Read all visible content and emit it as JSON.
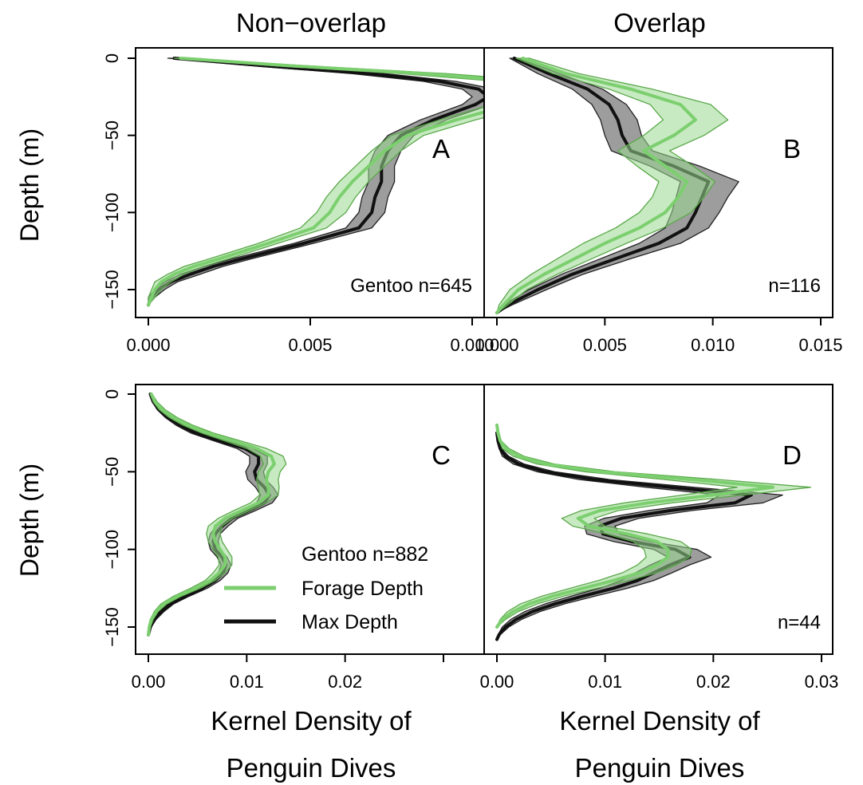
{
  "column_titles": [
    "Non−overlap",
    "Overlap"
  ],
  "ylabel": "Depth (m)",
  "xlabel_line1": "Kernel Density of",
  "xlabel_line2": "Penguin Dives",
  "colors": {
    "max_line": "#111111",
    "max_band": "#8c8c8c",
    "forage_line": "#7ccf6f",
    "forage_band": "#9bd98f",
    "forage_band_edge": "#5aa84a",
    "overlap_band": "#6e9a66"
  },
  "legend": {
    "title": "Gentoo n=882",
    "items": [
      {
        "label": "Forage Depth",
        "color": "#7ccf6f"
      },
      {
        "label": "Max Depth",
        "color": "#111111"
      }
    ]
  },
  "chart_data": [
    {
      "type": "area",
      "panel": "A",
      "annotation": "Gentoo n=645",
      "xlim": [
        0,
        0.015
      ],
      "xticks": [
        0.0,
        0.005,
        0.01
      ],
      "xticklabels": [
        "0.000",
        "0.005",
        "0.010"
      ],
      "ylim": [
        -165,
        5
      ],
      "yticks": [
        0,
        -50,
        -100,
        -150
      ],
      "yticklabels": [
        "0",
        "−50",
        "−100",
        "−150"
      ],
      "series": [
        {
          "name": "Forage Depth",
          "depth": [
            -160,
            -155,
            -150,
            -145,
            -140,
            -135,
            -130,
            -120,
            -110,
            -100,
            -90,
            -80,
            -70,
            -60,
            -50,
            -40,
            -30,
            -25,
            -20,
            -15,
            -10,
            -5,
            0
          ],
          "mean": [
            0.0,
            0.0001,
            0.0002,
            0.0004,
            0.0008,
            0.0014,
            0.0022,
            0.0037,
            0.0051,
            0.0056,
            0.0059,
            0.0063,
            0.0068,
            0.0073,
            0.008,
            0.0095,
            0.0112,
            0.0122,
            0.0128,
            0.0115,
            0.0085,
            0.0045,
            0.001
          ],
          "lower": [
            0.0,
            0.0,
            0.0001,
            0.0002,
            0.0006,
            0.0011,
            0.0019,
            0.0034,
            0.0047,
            0.0052,
            0.0055,
            0.0059,
            0.0064,
            0.0069,
            0.0075,
            0.009,
            0.0106,
            0.0115,
            0.012,
            0.0108,
            0.0078,
            0.004,
            0.0008
          ],
          "upper": [
            0.0,
            0.0002,
            0.0004,
            0.0007,
            0.0011,
            0.0017,
            0.0025,
            0.004,
            0.0055,
            0.0061,
            0.0064,
            0.0068,
            0.0073,
            0.0078,
            0.0085,
            0.0101,
            0.0119,
            0.013,
            0.0137,
            0.0123,
            0.0092,
            0.005,
            0.0012
          ]
        },
        {
          "name": "Max Depth",
          "depth": [
            -160,
            -155,
            -150,
            -145,
            -140,
            -135,
            -130,
            -120,
            -110,
            -100,
            -90,
            -80,
            -70,
            -60,
            -50,
            -40,
            -30,
            -25,
            -20,
            -15,
            -10,
            -5,
            0
          ],
          "mean": [
            0.0,
            0.0001,
            0.0003,
            0.0007,
            0.0013,
            0.002,
            0.0029,
            0.0048,
            0.0065,
            0.0069,
            0.007,
            0.0072,
            0.0072,
            0.0074,
            0.0078,
            0.0088,
            0.0101,
            0.0105,
            0.0102,
            0.009,
            0.0068,
            0.0037,
            0.0008
          ],
          "lower": [
            0.0,
            0.0,
            0.0002,
            0.0005,
            0.001,
            0.0017,
            0.0026,
            0.0045,
            0.0061,
            0.0065,
            0.0066,
            0.0068,
            0.0068,
            0.007,
            0.0074,
            0.0084,
            0.0097,
            0.01,
            0.0097,
            0.0085,
            0.0063,
            0.0033,
            0.0006
          ],
          "upper": [
            0.0,
            0.0002,
            0.0005,
            0.0009,
            0.0016,
            0.0023,
            0.0032,
            0.0051,
            0.0069,
            0.0073,
            0.0074,
            0.0076,
            0.0076,
            0.0078,
            0.0082,
            0.0092,
            0.0106,
            0.011,
            0.0107,
            0.0095,
            0.0073,
            0.0041,
            0.001
          ]
        }
      ]
    },
    {
      "type": "area",
      "panel": "B",
      "annotation": "n=116",
      "xlim": [
        0,
        0.015
      ],
      "xticks": [
        0.0,
        0.005,
        0.01,
        0.015
      ],
      "xticklabels": [
        "0.000",
        "0.005",
        "0.010",
        "0.015"
      ],
      "ylim": [
        -165,
        5
      ],
      "yticks": [
        0,
        -50,
        -100,
        -150
      ],
      "yticklabels": [
        "0",
        "−50",
        "−100",
        "−150"
      ],
      "series": [
        {
          "name": "Forage Depth",
          "depth": [
            -165,
            -160,
            -150,
            -140,
            -130,
            -120,
            -110,
            -100,
            -90,
            -80,
            -70,
            -60,
            -50,
            -40,
            -30,
            -20,
            -10,
            0
          ],
          "mean": [
            0.0,
            0.0003,
            0.001,
            0.0022,
            0.0036,
            0.005,
            0.0066,
            0.0078,
            0.0084,
            0.0088,
            0.0078,
            0.0068,
            0.0082,
            0.0092,
            0.0085,
            0.0062,
            0.0032,
            0.0012
          ],
          "lower": [
            0.0,
            0.0001,
            0.0006,
            0.0016,
            0.0028,
            0.004,
            0.0055,
            0.0066,
            0.0072,
            0.0075,
            0.0065,
            0.0056,
            0.0068,
            0.0077,
            0.0071,
            0.0052,
            0.0026,
            0.0009
          ],
          "upper": [
            0.0,
            0.0005,
            0.0014,
            0.0028,
            0.0044,
            0.006,
            0.0077,
            0.009,
            0.0096,
            0.0101,
            0.0091,
            0.008,
            0.0096,
            0.0107,
            0.0099,
            0.0072,
            0.0038,
            0.0015
          ]
        },
        {
          "name": "Max Depth",
          "depth": [
            -165,
            -160,
            -150,
            -140,
            -130,
            -120,
            -110,
            -100,
            -90,
            -80,
            -70,
            -60,
            -50,
            -40,
            -30,
            -20,
            -10,
            0
          ],
          "mean": [
            0.0,
            0.0005,
            0.0019,
            0.0035,
            0.0055,
            0.0075,
            0.0088,
            0.0092,
            0.0095,
            0.0098,
            0.0082,
            0.0062,
            0.0058,
            0.0056,
            0.0052,
            0.0042,
            0.0024,
            0.0008
          ],
          "lower": [
            0.0,
            0.0003,
            0.0015,
            0.003,
            0.0048,
            0.0066,
            0.0078,
            0.0081,
            0.0083,
            0.0085,
            0.0071,
            0.0053,
            0.005,
            0.0048,
            0.0044,
            0.0035,
            0.0019,
            0.0006
          ],
          "upper": [
            0.0,
            0.0007,
            0.0023,
            0.004,
            0.0062,
            0.0085,
            0.0098,
            0.0103,
            0.0107,
            0.0112,
            0.0094,
            0.0072,
            0.0067,
            0.0065,
            0.006,
            0.0049,
            0.0029,
            0.001
          ]
        }
      ]
    },
    {
      "type": "area",
      "panel": "C",
      "annotation": "",
      "xlim": [
        0,
        0.03
      ],
      "xticks": [
        0.0,
        0.01,
        0.02,
        0.03
      ],
      "xticklabels": [
        "0.00",
        "0.01",
        "0.02",
        ""
      ],
      "ylim": [
        -165,
        5
      ],
      "yticks": [
        0,
        -50,
        -100,
        -150
      ],
      "yticklabels": [
        "0",
        "−50",
        "−100",
        "−150"
      ],
      "series": [
        {
          "name": "Forage Depth",
          "depth": [
            -155,
            -150,
            -145,
            -140,
            -135,
            -130,
            -125,
            -120,
            -115,
            -110,
            -105,
            -100,
            -95,
            -90,
            -85,
            -80,
            -75,
            -70,
            -65,
            -60,
            -55,
            -50,
            -45,
            -40,
            -35,
            -30,
            -25,
            -20,
            -15,
            -10,
            -5,
            0
          ],
          "mean": [
            0.0,
            0.0001,
            0.0003,
            0.0008,
            0.0016,
            0.003,
            0.0048,
            0.0063,
            0.0072,
            0.0078,
            0.0078,
            0.0073,
            0.0068,
            0.0066,
            0.0068,
            0.0078,
            0.0095,
            0.0112,
            0.0122,
            0.0122,
            0.012,
            0.0122,
            0.0128,
            0.0125,
            0.011,
            0.0085,
            0.006,
            0.004,
            0.0025,
            0.0014,
            0.0007,
            0.0003
          ],
          "lower": [
            0.0,
            0.0,
            0.0002,
            0.0006,
            0.0013,
            0.0026,
            0.0043,
            0.0058,
            0.0066,
            0.0072,
            0.0071,
            0.0066,
            0.0061,
            0.0059,
            0.0061,
            0.0071,
            0.0087,
            0.0104,
            0.0113,
            0.0112,
            0.011,
            0.0112,
            0.0117,
            0.0114,
            0.01,
            0.0077,
            0.0054,
            0.0035,
            0.0021,
            0.0011,
            0.0005,
            0.0002
          ],
          "upper": [
            0.0,
            0.0002,
            0.0005,
            0.001,
            0.0019,
            0.0034,
            0.0053,
            0.0068,
            0.0078,
            0.0085,
            0.0085,
            0.008,
            0.0075,
            0.0073,
            0.0075,
            0.0086,
            0.0103,
            0.012,
            0.0132,
            0.0133,
            0.0132,
            0.0134,
            0.014,
            0.0137,
            0.012,
            0.0093,
            0.0066,
            0.0045,
            0.0029,
            0.0017,
            0.0009,
            0.0004
          ]
        },
        {
          "name": "Max Depth",
          "depth": [
            -155,
            -150,
            -145,
            -140,
            -135,
            -130,
            -125,
            -120,
            -115,
            -110,
            -105,
            -100,
            -95,
            -90,
            -85,
            -80,
            -75,
            -70,
            -65,
            -60,
            -55,
            -50,
            -45,
            -40,
            -35,
            -30,
            -25,
            -20,
            -15,
            -10,
            -5,
            0
          ],
          "mean": [
            0.0,
            0.0002,
            0.0006,
            0.0013,
            0.0023,
            0.0038,
            0.0055,
            0.0068,
            0.0076,
            0.0079,
            0.0075,
            0.0068,
            0.0066,
            0.0068,
            0.0075,
            0.0085,
            0.0102,
            0.0118,
            0.0123,
            0.0118,
            0.011,
            0.0108,
            0.0112,
            0.0112,
            0.0098,
            0.0072,
            0.0048,
            0.0032,
            0.002,
            0.0011,
            0.0005,
            0.0002
          ],
          "lower": [
            0.0,
            0.0001,
            0.0004,
            0.001,
            0.002,
            0.0034,
            0.005,
            0.0063,
            0.0071,
            0.0074,
            0.007,
            0.0063,
            0.0061,
            0.0063,
            0.0069,
            0.0079,
            0.0095,
            0.011,
            0.0114,
            0.0109,
            0.0101,
            0.0099,
            0.0103,
            0.0103,
            0.009,
            0.0066,
            0.0043,
            0.0028,
            0.0017,
            0.0009,
            0.0004,
            0.0001
          ],
          "upper": [
            0.0,
            0.0003,
            0.0008,
            0.0016,
            0.0026,
            0.0042,
            0.006,
            0.0073,
            0.0081,
            0.0084,
            0.008,
            0.0073,
            0.0071,
            0.0073,
            0.0081,
            0.0091,
            0.0109,
            0.0126,
            0.0132,
            0.0127,
            0.0119,
            0.0117,
            0.0121,
            0.0121,
            0.0106,
            0.0078,
            0.0053,
            0.0036,
            0.0023,
            0.0013,
            0.0006,
            0.0003
          ]
        }
      ]
    },
    {
      "type": "area",
      "panel": "D",
      "annotation": "n=44",
      "xlim": [
        0,
        0.033
      ],
      "xticks": [
        0.0,
        0.01,
        0.02,
        0.03
      ],
      "xticklabels": [
        "0.00",
        "0.01",
        "0.02",
        "0.03"
      ],
      "ylim": [
        -165,
        5
      ],
      "yticks": [
        0,
        -50,
        -100,
        -150
      ],
      "yticklabels": [
        "0",
        "−50",
        "−100",
        "−150"
      ],
      "series": [
        {
          "name": "Forage Depth",
          "depth": [
            -150,
            -145,
            -140,
            -135,
            -130,
            -125,
            -120,
            -115,
            -110,
            -105,
            -100,
            -95,
            -90,
            -85,
            -80,
            -75,
            -70,
            -65,
            -60,
            -55,
            -50,
            -45,
            -40,
            -35,
            -30,
            -25,
            -20
          ],
          "mean": [
            0.0,
            0.0005,
            0.0015,
            0.003,
            0.0052,
            0.008,
            0.0108,
            0.0132,
            0.0148,
            0.0158,
            0.0158,
            0.0148,
            0.012,
            0.0085,
            0.0075,
            0.0095,
            0.014,
            0.02,
            0.0255,
            0.018,
            0.0095,
            0.0045,
            0.002,
            0.0008,
            0.0003,
            0.0001,
            0.0
          ],
          "lower": [
            0.0,
            0.0003,
            0.001,
            0.0022,
            0.0042,
            0.0068,
            0.0094,
            0.0116,
            0.013,
            0.0138,
            0.0136,
            0.0126,
            0.0101,
            0.007,
            0.006,
            0.0078,
            0.0118,
            0.0172,
            0.0222,
            0.0155,
            0.0081,
            0.0037,
            0.0015,
            0.0005,
            0.0002,
            0.0,
            0.0
          ],
          "upper": [
            0.0,
            0.0008,
            0.002,
            0.0038,
            0.0062,
            0.0093,
            0.0122,
            0.0148,
            0.0166,
            0.0178,
            0.018,
            0.017,
            0.0139,
            0.01,
            0.009,
            0.0112,
            0.0162,
            0.0228,
            0.029,
            0.0205,
            0.0109,
            0.0053,
            0.0025,
            0.0011,
            0.0004,
            0.0002,
            0.0
          ]
        },
        {
          "name": "Max Depth",
          "depth": [
            -158,
            -155,
            -150,
            -145,
            -140,
            -135,
            -130,
            -125,
            -120,
            -115,
            -110,
            -105,
            -100,
            -95,
            -90,
            -85,
            -80,
            -75,
            -70,
            -65,
            -60,
            -55,
            -50,
            -45,
            -40,
            -35,
            -30,
            -25
          ],
          "mean": [
            0.0,
            0.0002,
            0.0008,
            0.0018,
            0.0033,
            0.0054,
            0.008,
            0.0108,
            0.013,
            0.0145,
            0.016,
            0.0178,
            0.0165,
            0.0125,
            0.0098,
            0.0095,
            0.0115,
            0.016,
            0.022,
            0.0235,
            0.016,
            0.009,
            0.0045,
            0.002,
            0.0008,
            0.0003,
            0.0001,
            0.0
          ],
          "lower": [
            0.0,
            0.0001,
            0.0005,
            0.0013,
            0.0026,
            0.0045,
            0.0069,
            0.0095,
            0.0115,
            0.0128,
            0.0142,
            0.0158,
            0.0145,
            0.0108,
            0.0083,
            0.0081,
            0.0099,
            0.014,
            0.0194,
            0.0206,
            0.0138,
            0.0076,
            0.0037,
            0.0015,
            0.0005,
            0.0002,
            0.0,
            0.0
          ],
          "upper": [
            0.0,
            0.0003,
            0.0011,
            0.0023,
            0.004,
            0.0063,
            0.0091,
            0.0121,
            0.0145,
            0.0162,
            0.0178,
            0.0198,
            0.0185,
            0.0142,
            0.0113,
            0.0109,
            0.0131,
            0.018,
            0.0246,
            0.0264,
            0.0182,
            0.0104,
            0.0053,
            0.0025,
            0.0011,
            0.0004,
            0.0002,
            0.0
          ]
        }
      ]
    }
  ]
}
